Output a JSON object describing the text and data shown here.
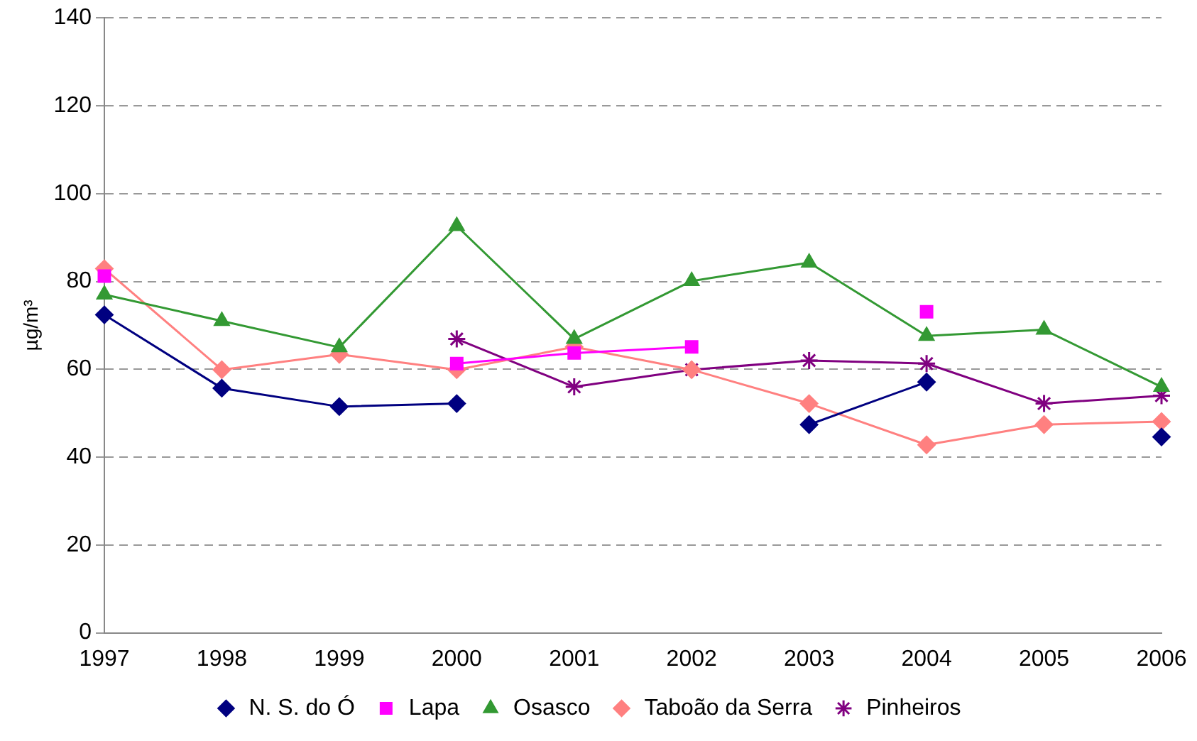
{
  "chart_data": {
    "type": "line",
    "ylabel": "µg/m³",
    "categories": [
      "1997",
      "1998",
      "1999",
      "2000",
      "2001",
      "2002",
      "2003",
      "2004",
      "2005",
      "2006"
    ],
    "series": [
      {
        "name": "N. S. do Ó",
        "color": "#000080",
        "marker": "diamond",
        "values": [
          72.4,
          55.7,
          51.5,
          52.2,
          null,
          null,
          47.4,
          57.1,
          null,
          44.6
        ]
      },
      {
        "name": "Lapa",
        "color": "#ff00ff",
        "marker": "square",
        "values": [
          81.2,
          null,
          null,
          61.3,
          63.7,
          65.1,
          null,
          73.1,
          null,
          null
        ]
      },
      {
        "name": "Osasco",
        "color": "#339933",
        "marker": "triangle",
        "values": [
          77,
          71,
          65,
          92.6,
          66.9,
          80.1,
          84.3,
          67.6,
          69,
          56
        ]
      },
      {
        "name": "Taboão da Serra",
        "color": "#ff8080",
        "marker": "diamond",
        "values": [
          82.9,
          59.9,
          63.4,
          59.9,
          65.1,
          59.9,
          52.2,
          42.8,
          47.4,
          48.1
        ]
      },
      {
        "name": "Pinheiros",
        "color": "#800080",
        "marker": "cross",
        "values": [
          null,
          null,
          null,
          66.9,
          56,
          59.9,
          62,
          61.3,
          52.2,
          54
        ]
      }
    ],
    "ylim": [
      0,
      140
    ],
    "yticks": [
      0,
      20,
      40,
      60,
      80,
      100,
      120,
      140
    ],
    "grid": "y",
    "legend": "bottom",
    "line_style": "solid"
  }
}
